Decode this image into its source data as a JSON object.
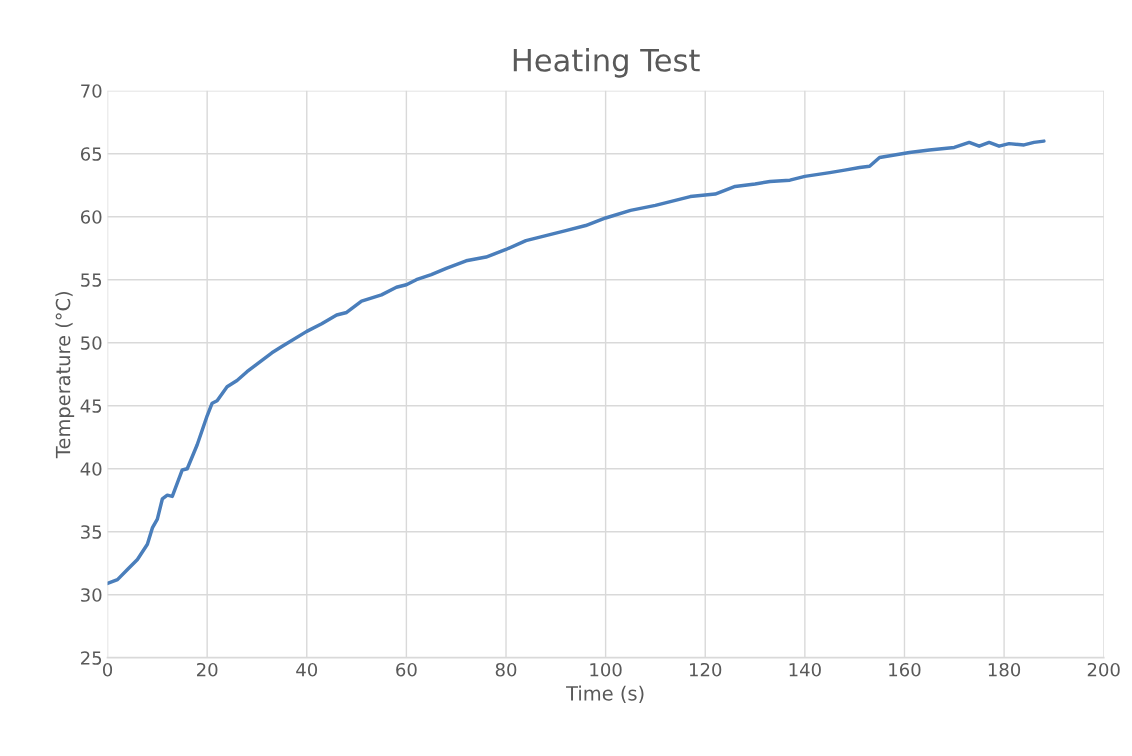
{
  "chart_data": {
    "type": "line",
    "title": "Heating Test",
    "xlabel": "Time (s)",
    "ylabel": "Temperature (°C)",
    "x": [
      0,
      2,
      4,
      6,
      8,
      9,
      10,
      11,
      12,
      13,
      15,
      16,
      18,
      20,
      21,
      22,
      24,
      26,
      28,
      30,
      33,
      35,
      40,
      43,
      46,
      48,
      51,
      55,
      58,
      60,
      62,
      65,
      68,
      72,
      76,
      80,
      84,
      88,
      92,
      96,
      100,
      105,
      110,
      113,
      117,
      122,
      126,
      130,
      133,
      137,
      140,
      145,
      148,
      151,
      153,
      155,
      158,
      161,
      165,
      170,
      173,
      175,
      177,
      179,
      181,
      184,
      186,
      188
    ],
    "series": [
      {
        "color": "#4a7ebb",
        "values": [
          30.9,
          31.2,
          32.0,
          32.8,
          34.0,
          35.3,
          36.0,
          37.6,
          37.9,
          37.8,
          39.9,
          40.0,
          41.9,
          44.2,
          45.2,
          45.4,
          46.5,
          47.0,
          47.7,
          48.3,
          49.2,
          49.7,
          50.9,
          51.5,
          52.2,
          52.4,
          53.3,
          53.8,
          54.4,
          54.6,
          55.0,
          55.4,
          55.9,
          56.5,
          56.8,
          57.4,
          58.1,
          58.5,
          58.9,
          59.3,
          59.9,
          60.5,
          60.9,
          61.2,
          61.6,
          61.8,
          62.4,
          62.6,
          62.8,
          62.9,
          63.2,
          63.5,
          63.7,
          63.9,
          64.0,
          64.7,
          64.9,
          65.1,
          65.3,
          65.5,
          65.9,
          65.6,
          65.9,
          65.6,
          65.8,
          65.7,
          65.9,
          66.0
        ]
      }
    ],
    "xlim": [
      0,
      200
    ],
    "xticks": [
      0,
      20,
      40,
      60,
      80,
      100,
      120,
      140,
      160,
      180,
      200
    ],
    "ylim": [
      25,
      70
    ],
    "yticks": [
      25,
      30,
      35,
      40,
      45,
      50,
      55,
      60,
      65,
      70
    ],
    "grid": true,
    "legend": false,
    "marker": "none",
    "line_style": "solid"
  }
}
